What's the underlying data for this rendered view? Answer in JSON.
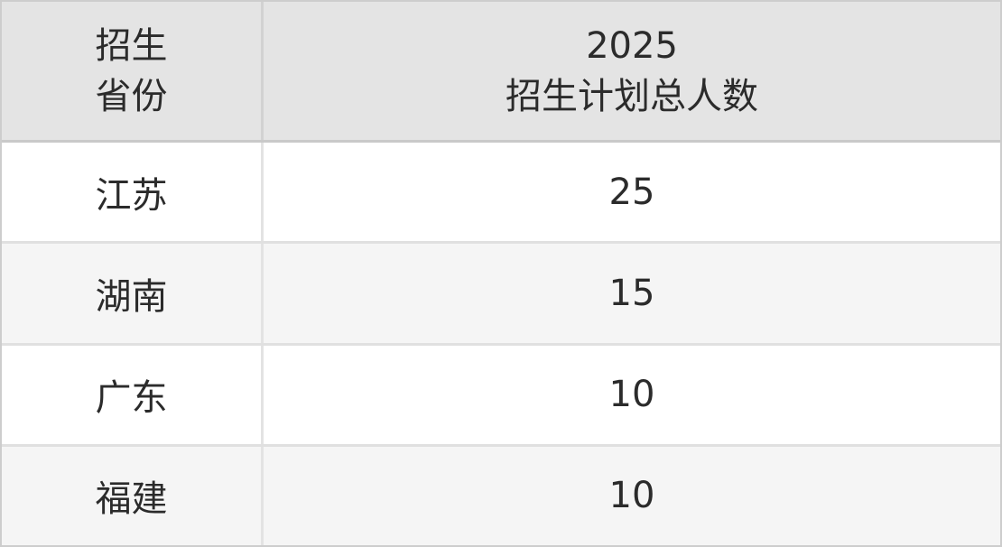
{
  "table": {
    "header": {
      "col1_line1": "招生",
      "col1_line2": "省份",
      "col2_line1": "2025",
      "col2_line2": "招生计划总人数"
    },
    "rows": [
      {
        "province": "江苏",
        "total": "25"
      },
      {
        "province": "湖南",
        "total": "15"
      },
      {
        "province": "广东",
        "total": "10"
      },
      {
        "province": "福建",
        "total": "10"
      }
    ]
  },
  "colors": {
    "header_bg": "#e4e4e4",
    "row_bg": "#ffffff",
    "row_alt_bg": "#f5f5f5",
    "outer_border": "#cdcdcd",
    "header_border": "#c9c9c9",
    "row_border": "#e0e0e0",
    "column_divider": "#e0e0e0",
    "text": "#2b2b2b"
  },
  "chart_data": {
    "type": "table",
    "columns": [
      "招生省份",
      "2025招生计划总人数"
    ],
    "rows": [
      [
        "江苏",
        25
      ],
      [
        "湖南",
        15
      ],
      [
        "广东",
        10
      ],
      [
        "福建",
        10
      ]
    ]
  }
}
